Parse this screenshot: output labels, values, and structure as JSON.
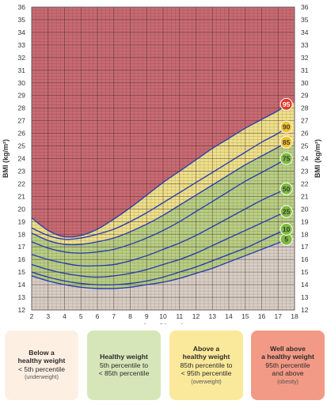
{
  "chart_data": {
    "type": "line",
    "title": "",
    "xlabel": "Age (Years)",
    "ylabel": "BMI (kg/m²)",
    "xlim": [
      2,
      18
    ],
    "ylim": [
      12,
      36
    ],
    "x_ticks": [
      2,
      3,
      4,
      5,
      6,
      7,
      8,
      9,
      10,
      11,
      12,
      13,
      14,
      15,
      16,
      17,
      18
    ],
    "y_ticks": [
      12,
      13,
      14,
      15,
      16,
      17,
      18,
      19,
      20,
      21,
      22,
      23,
      24,
      25,
      26,
      27,
      28,
      29,
      30,
      31,
      32,
      33,
      34,
      35,
      36
    ],
    "x": [
      2,
      3,
      4,
      5,
      6,
      7,
      8,
      9,
      10,
      11,
      12,
      13,
      14,
      15,
      16,
      17,
      17.5
    ],
    "series": [
      {
        "name": "5",
        "values": [
          14.7,
          14.3,
          14.0,
          13.8,
          13.7,
          13.7,
          13.8,
          14.0,
          14.2,
          14.5,
          14.9,
          15.3,
          15.8,
          16.3,
          16.8,
          17.3,
          17.6
        ]
      },
      {
        "name": "10",
        "values": [
          15.0,
          14.6,
          14.3,
          14.1,
          14.0,
          14.0,
          14.1,
          14.3,
          14.6,
          15.0,
          15.4,
          15.9,
          16.4,
          16.9,
          17.5,
          18.1,
          18.4
        ]
      },
      {
        "name": "25",
        "values": [
          15.6,
          15.2,
          14.9,
          14.7,
          14.6,
          14.7,
          14.9,
          15.2,
          15.6,
          16.0,
          16.5,
          17.1,
          17.7,
          18.3,
          18.9,
          19.5,
          19.8
        ]
      },
      {
        "name": "50",
        "values": [
          16.4,
          16.0,
          15.7,
          15.5,
          15.5,
          15.6,
          15.9,
          16.3,
          16.8,
          17.3,
          17.9,
          18.6,
          19.3,
          20.0,
          20.7,
          21.3,
          21.6
        ]
      },
      {
        "name": "75",
        "values": [
          17.4,
          16.9,
          16.6,
          16.5,
          16.6,
          16.8,
          17.2,
          17.7,
          18.3,
          19.0,
          19.8,
          20.6,
          21.4,
          22.2,
          22.9,
          23.6,
          24.0
        ]
      },
      {
        "name": "85",
        "values": [
          18.1,
          17.5,
          17.2,
          17.2,
          17.4,
          17.7,
          18.2,
          18.8,
          19.5,
          20.3,
          21.1,
          21.9,
          22.7,
          23.5,
          24.2,
          24.9,
          25.3
        ]
      },
      {
        "name": "90",
        "values": [
          18.5,
          17.9,
          17.6,
          17.7,
          18.0,
          18.4,
          19.0,
          19.7,
          20.5,
          21.3,
          22.1,
          22.9,
          23.7,
          24.5,
          25.3,
          26.0,
          26.5
        ]
      },
      {
        "name": "95",
        "values": [
          19.3,
          18.3,
          17.8,
          17.9,
          18.4,
          19.2,
          20.1,
          21.1,
          22.1,
          23.0,
          23.9,
          24.8,
          25.6,
          26.4,
          27.1,
          27.8,
          28.3
        ]
      }
    ]
  },
  "colors": {
    "obese": "#c96a72",
    "overweight": "#efe08a",
    "healthy": "#b9cf83",
    "underweight": "#d9cfc6",
    "line": "#2b3fae",
    "badge_red": "#e03b2c",
    "badge_yellow": "#f6c22c",
    "badge_green": "#7dbb3f"
  },
  "legend": [
    {
      "title": "Below a\nhealthy weight",
      "desc": "< 5th percentile",
      "note": "(underweight)",
      "bg": "#fdf0e3"
    },
    {
      "title": "Healthy weight",
      "desc": "5th percentile to\n< 85th percentile",
      "note": "",
      "bg": "#d7e6b9"
    },
    {
      "title": "Above a\nhealthy weight",
      "desc": "85th percentile to\n< 95th percentile",
      "note": "(overweight)",
      "bg": "#fbe99b"
    },
    {
      "title": "Well above\na healthy weight",
      "desc": "95th percentile\nand above",
      "note": "(obesity)",
      "bg": "#f39a86"
    }
  ]
}
